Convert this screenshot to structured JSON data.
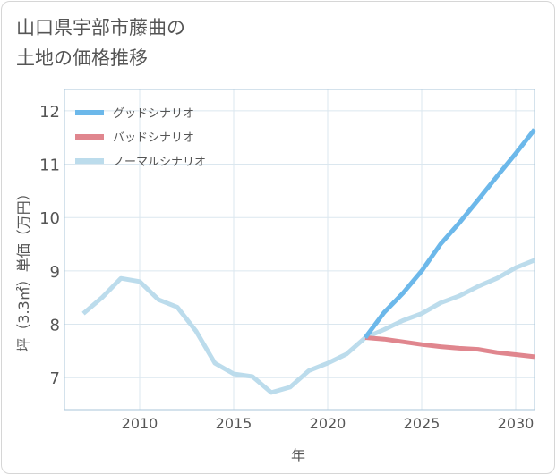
{
  "title_lines": [
    "山口県宇部市藤曲の",
    "土地の価格推移"
  ],
  "chart_data": {
    "type": "line",
    "title": "山口県宇部市藤曲の土地の価格推移",
    "xlabel": "年",
    "ylabel": "坪（3.3㎡）単価（万円）",
    "xlim": [
      2006,
      2031
    ],
    "ylim": [
      6.4,
      12.4
    ],
    "xticks": [
      2010,
      2015,
      2020,
      2025,
      2030
    ],
    "yticks": [
      7,
      8,
      9,
      10,
      11,
      12
    ],
    "grid": true,
    "legend_position": "top-left",
    "series": [
      {
        "name": "グッドシナリオ",
        "color": "#6cb8ea",
        "x": [
          2022,
          2023,
          2024,
          2025,
          2026,
          2027,
          2028,
          2029,
          2030,
          2031
        ],
        "values": [
          7.75,
          8.22,
          8.58,
          9.0,
          9.5,
          9.9,
          10.33,
          10.77,
          11.2,
          11.65
        ]
      },
      {
        "name": "バッドシナリオ",
        "color": "#e0868e",
        "x": [
          2022,
          2023,
          2024,
          2025,
          2026,
          2027,
          2028,
          2029,
          2030,
          2031
        ],
        "values": [
          7.75,
          7.72,
          7.67,
          7.62,
          7.58,
          7.55,
          7.53,
          7.47,
          7.43,
          7.39
        ]
      },
      {
        "name": "ノーマルシナリオ",
        "color": "#bcdcec",
        "x": [
          2007,
          2008,
          2009,
          2010,
          2011,
          2012,
          2013,
          2014,
          2015,
          2016,
          2017,
          2018,
          2019,
          2020,
          2021,
          2022,
          2023,
          2024,
          2025,
          2026,
          2027,
          2028,
          2029,
          2030,
          2031
        ],
        "values": [
          8.2,
          8.5,
          8.86,
          8.8,
          8.46,
          8.32,
          7.87,
          7.27,
          7.07,
          7.02,
          6.72,
          6.82,
          7.13,
          7.27,
          7.44,
          7.75,
          7.9,
          8.07,
          8.2,
          8.4,
          8.53,
          8.71,
          8.86,
          9.06,
          9.2
        ]
      }
    ]
  }
}
